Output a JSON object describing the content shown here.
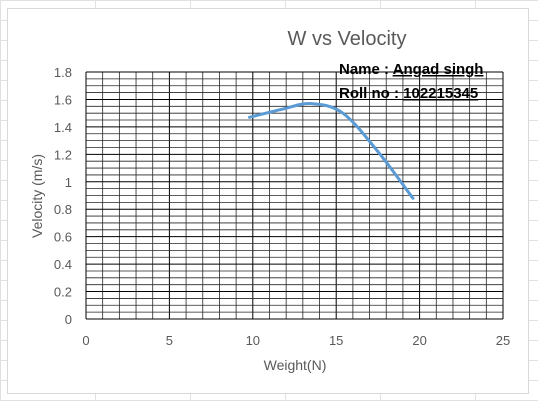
{
  "chart_data": {
    "type": "line",
    "title": "W vs Velocity",
    "xlabel": "Weight(N)",
    "ylabel": "Velocity (m/s)",
    "xlim": [
      0,
      25
    ],
    "ylim": [
      0,
      1.8
    ],
    "xticks": [
      "0",
      "5",
      "10",
      "15",
      "20",
      "25"
    ],
    "yticks": [
      "0",
      "0.2",
      "0.4",
      "0.6",
      "0.8",
      "1",
      "1.2",
      "1.4",
      "1.6",
      "1.8"
    ],
    "grid": true,
    "legend": "none",
    "series": [
      {
        "color": "#5b9bd5",
        "x": [
          9.8,
          11.8,
          13.5,
          15.4,
          17.5,
          19.6
        ],
        "y": [
          1.47,
          1.53,
          1.57,
          1.5,
          1.22,
          0.88
        ]
      }
    ],
    "annotations": {
      "name_label": "Name : ",
      "name_value": "Angad singh",
      "roll_label": "Roll no : ",
      "roll_value": "102215345"
    }
  }
}
